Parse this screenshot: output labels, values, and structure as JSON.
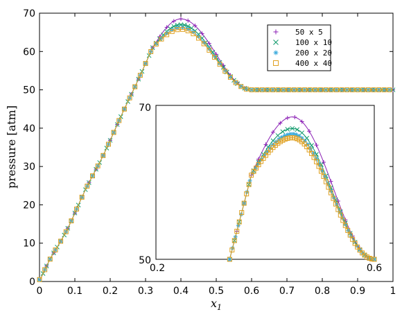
{
  "chart_data": {
    "type": "line",
    "title": "",
    "xlabel": "x",
    "xlabel_sub": "1",
    "ylabel": "pressure [atm]",
    "xlim": [
      0,
      1
    ],
    "ylim": [
      0,
      70
    ],
    "x_ticks": [
      "0",
      "0.1",
      "0.2",
      "0.3",
      "0.4",
      "0.5",
      "0.6",
      "0.7",
      "0.8",
      "0.9",
      "1"
    ],
    "y_ticks": [
      "0",
      "10",
      "20",
      "30",
      "40",
      "50",
      "60",
      "70"
    ],
    "grid": false,
    "legend_position": "top-right",
    "series": [
      {
        "name": "50 x 5",
        "color": "#8b1fb5",
        "marker": "plus",
        "peak": 68.5,
        "points": 50
      },
      {
        "name": "100 x 10",
        "color": "#0e9a6b",
        "marker": "cross",
        "peak": 67.0,
        "points": 100
      },
      {
        "name": "200 x 20",
        "color": "#3aaadc",
        "marker": "asterisk",
        "peak": 66.3,
        "points": 200
      },
      {
        "name": "400 x 40",
        "color": "#e0a020",
        "marker": "square",
        "peak": 65.8,
        "points": 400
      }
    ],
    "profile": {
      "x_rise_end": 0.32,
      "y_rise_end": 61,
      "x_peak": 0.4,
      "x_plateau": 0.6,
      "y_plateau": 50
    },
    "inset": {
      "xlim": [
        0.2,
        0.6
      ],
      "ylim": [
        50,
        70
      ],
      "x_tick_labels": [
        "0.2",
        "0.6"
      ],
      "y_tick_labels": [
        "50",
        "70"
      ]
    }
  }
}
